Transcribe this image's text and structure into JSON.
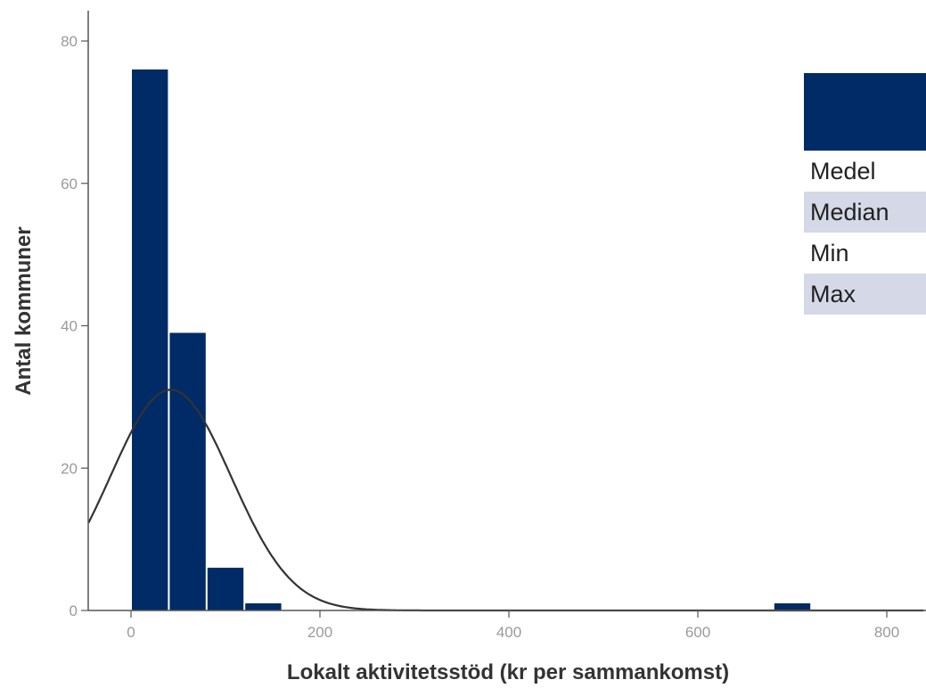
{
  "chart_data": {
    "type": "bar",
    "subtype": "histogram",
    "xlabel": "Lokalt aktivitetsstöd (kr per sammankomst)",
    "ylabel": "Antal kommuner",
    "xlim": [
      -45,
      840
    ],
    "ylim": [
      0,
      84
    ],
    "x_ticks": [
      0,
      200,
      400,
      600,
      800
    ],
    "y_ticks": [
      0,
      20,
      40,
      60,
      80
    ],
    "bin_width": 40,
    "bins": [
      {
        "start": 0,
        "end": 40,
        "count": 76
      },
      {
        "start": 40,
        "end": 80,
        "count": 39
      },
      {
        "start": 80,
        "end": 120,
        "count": 6
      },
      {
        "start": 120,
        "end": 160,
        "count": 1
      },
      {
        "start": 680,
        "end": 720,
        "count": 1
      }
    ],
    "normal_curve": {
      "mean": 42,
      "sd": 64,
      "peak": 31
    },
    "bar_color": "#002b66",
    "curve_color": "#333333",
    "grid": false
  },
  "legend": {
    "swatch_color": "#002b66",
    "rows": [
      "Medel",
      "Median",
      "Min",
      "Max"
    ]
  }
}
